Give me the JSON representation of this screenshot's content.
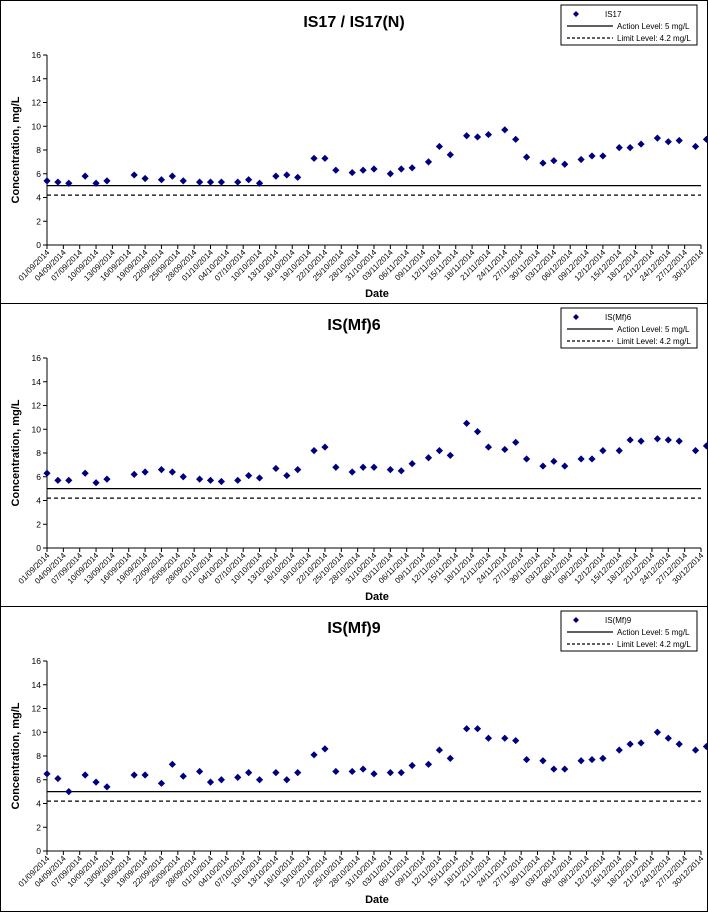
{
  "styles": {
    "marker_color": "#00007f",
    "line_color": "#000000"
  },
  "dates": [
    "01/09/2014",
    "04/09/2014",
    "07/09/2014",
    "10/09/2014",
    "13/09/2014",
    "16/09/2014",
    "19/09/2014",
    "22/09/2014",
    "25/09/2014",
    "28/09/2014",
    "01/10/2014",
    "04/10/2014",
    "07/10/2014",
    "10/10/2014",
    "13/10/2014",
    "16/10/2014",
    "19/10/2014",
    "22/10/2014",
    "25/10/2014",
    "28/10/2014",
    "31/10/2014",
    "03/11/2014",
    "06/11/2014",
    "09/11/2014",
    "12/11/2014",
    "15/11/2014",
    "18/11/2014",
    "21/11/2014",
    "24/11/2014",
    "27/11/2014",
    "30/11/2014",
    "03/12/2014",
    "06/12/2014",
    "09/12/2014",
    "12/12/2014",
    "15/12/2014",
    "18/12/2014",
    "21/12/2014",
    "24/12/2014",
    "27/12/2014",
    "30/12/2014"
  ],
  "chart_data": [
    {
      "type": "scatter",
      "title": "IS17 / IS17(N)",
      "xlabel": "Date",
      "ylabel": "Concentration, mg/L",
      "ylim": [
        0,
        16
      ],
      "yticks": [
        0,
        2,
        4,
        6,
        8,
        10,
        12,
        14,
        16
      ],
      "legend_position": "top-right",
      "series": [
        {
          "name": "IS17",
          "x": [
            "01/09/2014",
            "03/09/2014",
            "05/09/2014",
            "08/09/2014",
            "10/09/2014",
            "12/09/2014",
            "17/09/2014",
            "19/09/2014",
            "22/09/2014",
            "24/09/2014",
            "26/09/2014",
            "29/09/2014",
            "01/10/2014",
            "03/10/2014",
            "06/10/2014",
            "08/10/2014",
            "10/10/2014",
            "13/10/2014",
            "15/10/2014",
            "17/10/2014",
            "20/10/2014",
            "22/10/2014",
            "24/10/2014",
            "27/10/2014",
            "29/10/2014",
            "31/10/2014",
            "03/11/2014",
            "05/11/2014",
            "07/11/2014",
            "10/11/2014",
            "12/11/2014",
            "14/11/2014",
            "17/11/2014",
            "19/11/2014",
            "21/11/2014",
            "24/11/2014",
            "26/11/2014",
            "28/11/2014",
            "01/12/2014",
            "03/12/2014",
            "05/12/2014",
            "08/12/2014",
            "10/12/2014",
            "12/12/2014",
            "15/12/2014",
            "17/12/2014",
            "19/12/2014",
            "22/12/2014",
            "24/12/2014",
            "26/12/2014",
            "29/12/2014",
            "31/12/2014"
          ],
          "y": [
            5.4,
            5.3,
            5.2,
            5.8,
            5.2,
            5.4,
            5.9,
            5.6,
            5.5,
            5.8,
            5.4,
            5.3,
            5.3,
            5.3,
            5.3,
            5.5,
            5.2,
            5.8,
            5.9,
            5.7,
            7.3,
            7.3,
            6.3,
            6.1,
            6.3,
            6.4,
            6.0,
            6.4,
            6.5,
            7.0,
            8.3,
            7.6,
            9.2,
            9.1,
            9.3,
            9.7,
            8.9,
            7.4,
            6.9,
            7.1,
            6.8,
            7.2,
            7.5,
            7.5,
            8.2,
            8.2,
            8.5,
            9.0,
            8.7,
            8.8,
            8.3,
            8.9
          ]
        },
        {
          "name": "Action Level: 5 mg/L",
          "value": 5
        },
        {
          "name": "Limit Level: 4.2 mg/L",
          "value": 4.2
        }
      ]
    },
    {
      "type": "scatter",
      "title": "IS(Mf)6",
      "xlabel": "Date",
      "ylabel": "Concentration, mg/L",
      "ylim": [
        0,
        16
      ],
      "yticks": [
        0,
        2,
        4,
        6,
        8,
        10,
        12,
        14,
        16
      ],
      "legend_position": "top-right",
      "series": [
        {
          "name": "IS(Mf)6",
          "x": [
            "01/09/2014",
            "03/09/2014",
            "05/09/2014",
            "08/09/2014",
            "10/09/2014",
            "12/09/2014",
            "17/09/2014",
            "19/09/2014",
            "22/09/2014",
            "24/09/2014",
            "26/09/2014",
            "29/09/2014",
            "01/10/2014",
            "03/10/2014",
            "06/10/2014",
            "08/10/2014",
            "10/10/2014",
            "13/10/2014",
            "15/10/2014",
            "17/10/2014",
            "20/10/2014",
            "22/10/2014",
            "24/10/2014",
            "27/10/2014",
            "29/10/2014",
            "31/10/2014",
            "03/11/2014",
            "05/11/2014",
            "07/11/2014",
            "10/11/2014",
            "12/11/2014",
            "14/11/2014",
            "17/11/2014",
            "19/11/2014",
            "21/11/2014",
            "24/11/2014",
            "26/11/2014",
            "28/11/2014",
            "01/12/2014",
            "03/12/2014",
            "05/12/2014",
            "08/12/2014",
            "10/12/2014",
            "12/12/2014",
            "15/12/2014",
            "17/12/2014",
            "19/12/2014",
            "22/12/2014",
            "24/12/2014",
            "26/12/2014",
            "29/12/2014",
            "31/12/2014"
          ],
          "y": [
            6.3,
            5.7,
            5.7,
            6.3,
            5.5,
            5.8,
            6.2,
            6.4,
            6.6,
            6.4,
            6.0,
            5.8,
            5.7,
            5.6,
            5.7,
            6.1,
            5.9,
            6.7,
            6.1,
            6.6,
            8.2,
            8.5,
            6.8,
            6.4,
            6.8,
            6.8,
            6.6,
            6.5,
            7.1,
            7.6,
            8.2,
            7.8,
            10.5,
            9.8,
            8.5,
            8.3,
            8.9,
            7.5,
            6.9,
            7.3,
            6.9,
            7.5,
            7.5,
            8.2,
            8.2,
            9.1,
            9.0,
            9.2,
            9.1,
            9.0,
            8.2,
            8.6
          ]
        },
        {
          "name": "Action Level: 5 mg/L",
          "value": 5
        },
        {
          "name": "Limit Level: 4.2 mg/L",
          "value": 4.2
        }
      ]
    },
    {
      "type": "scatter",
      "title": "IS(Mf)9",
      "xlabel": "Date",
      "ylabel": "Concentration, mg/L",
      "ylim": [
        0,
        16
      ],
      "yticks": [
        0,
        2,
        4,
        6,
        8,
        10,
        12,
        14,
        16
      ],
      "legend_position": "top-right",
      "series": [
        {
          "name": "IS(Mf)9",
          "x": [
            "01/09/2014",
            "03/09/2014",
            "05/09/2014",
            "08/09/2014",
            "10/09/2014",
            "12/09/2014",
            "17/09/2014",
            "19/09/2014",
            "22/09/2014",
            "24/09/2014",
            "26/09/2014",
            "29/09/2014",
            "01/10/2014",
            "03/10/2014",
            "06/10/2014",
            "08/10/2014",
            "10/10/2014",
            "13/10/2014",
            "15/10/2014",
            "17/10/2014",
            "20/10/2014",
            "22/10/2014",
            "24/10/2014",
            "27/10/2014",
            "29/10/2014",
            "31/10/2014",
            "03/11/2014",
            "05/11/2014",
            "07/11/2014",
            "10/11/2014",
            "12/11/2014",
            "14/11/2014",
            "17/11/2014",
            "19/11/2014",
            "21/11/2014",
            "24/11/2014",
            "26/11/2014",
            "28/11/2014",
            "01/12/2014",
            "03/12/2014",
            "05/12/2014",
            "08/12/2014",
            "10/12/2014",
            "12/12/2014",
            "15/12/2014",
            "17/12/2014",
            "19/12/2014",
            "22/12/2014",
            "24/12/2014",
            "26/12/2014",
            "29/12/2014",
            "31/12/2014"
          ],
          "y": [
            6.5,
            6.1,
            5.0,
            6.4,
            5.8,
            5.4,
            6.4,
            6.4,
            5.7,
            7.3,
            6.3,
            6.7,
            5.8,
            6.0,
            6.2,
            6.6,
            6.0,
            6.6,
            6.0,
            6.6,
            8.1,
            8.6,
            6.7,
            6.7,
            6.9,
            6.5,
            6.6,
            6.6,
            7.2,
            7.3,
            8.5,
            7.8,
            10.3,
            10.3,
            9.5,
            9.5,
            9.3,
            7.7,
            7.6,
            6.9,
            6.9,
            7.6,
            7.7,
            7.8,
            8.5,
            9.0,
            9.1,
            10.0,
            9.5,
            9.0,
            8.5,
            8.8
          ]
        },
        {
          "name": "Action Level: 5 mg/L",
          "value": 5
        },
        {
          "name": "Limit Level: 4.2 mg/L",
          "value": 4.2
        }
      ]
    }
  ]
}
